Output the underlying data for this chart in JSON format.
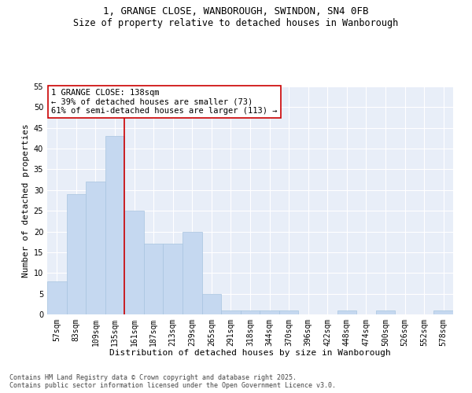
{
  "title_line1": "1, GRANGE CLOSE, WANBOROUGH, SWINDON, SN4 0FB",
  "title_line2": "Size of property relative to detached houses in Wanborough",
  "xlabel": "Distribution of detached houses by size in Wanborough",
  "ylabel": "Number of detached properties",
  "categories": [
    "57sqm",
    "83sqm",
    "109sqm",
    "135sqm",
    "161sqm",
    "187sqm",
    "213sqm",
    "239sqm",
    "265sqm",
    "291sqm",
    "318sqm",
    "344sqm",
    "370sqm",
    "396sqm",
    "422sqm",
    "448sqm",
    "474sqm",
    "500sqm",
    "526sqm",
    "552sqm",
    "578sqm"
  ],
  "values": [
    8,
    29,
    32,
    43,
    25,
    17,
    17,
    20,
    5,
    1,
    1,
    1,
    1,
    0,
    0,
    1,
    0,
    1,
    0,
    0,
    1
  ],
  "bar_color": "#c5d8f0",
  "bar_edge_color": "#a8c4e0",
  "vline_x": 3.5,
  "vline_color": "#cc0000",
  "annotation_text": "1 GRANGE CLOSE: 138sqm\n← 39% of detached houses are smaller (73)\n61% of semi-detached houses are larger (113) →",
  "annotation_box_color": "white",
  "annotation_box_edge": "#cc0000",
  "ylim": [
    0,
    55
  ],
  "yticks": [
    0,
    5,
    10,
    15,
    20,
    25,
    30,
    35,
    40,
    45,
    50,
    55
  ],
  "bg_color": "#e8eef8",
  "grid_color": "white",
  "footer_line1": "Contains HM Land Registry data © Crown copyright and database right 2025.",
  "footer_line2": "Contains public sector information licensed under the Open Government Licence v3.0.",
  "title_fontsize": 9,
  "subtitle_fontsize": 8.5,
  "axis_label_fontsize": 8,
  "tick_fontsize": 7,
  "annotation_fontsize": 7.5,
  "footer_fontsize": 6
}
